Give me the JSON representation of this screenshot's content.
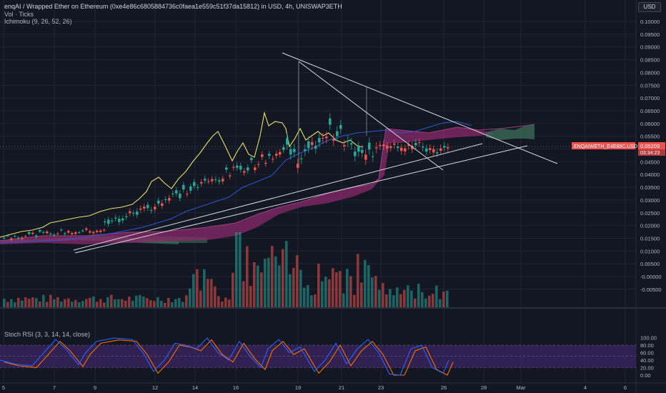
{
  "header": {
    "title": "enqAI / Wrapped Ether on Ethereum (0xe4e86c6805884736c0faea1e559c51f37da15812) in USD, 4h, UNISWAP3ETH",
    "vol_label": "Vol · Ticks",
    "ichimoku_label": "Ichimoku (9, 26, 52, 26)",
    "currency_button": "USD"
  },
  "colors": {
    "background": "#131722",
    "grid": "#1f2535",
    "bull": "#26a69a",
    "bear": "#ef5350",
    "price_line": "#e7e26a",
    "base_line": "#2f55d4",
    "cloud_bear": "#8a2a6a",
    "cloud_bull": "#3d6e5a",
    "trendline": "#d9dbe0",
    "price_tag": "#ef5350",
    "stoch_k": "#2962ff",
    "stoch_d": "#ff6d00",
    "stoch_band": "#4a2a7a"
  },
  "chart_data": [
    {
      "type": "candlestick",
      "ticker_label": "ENQAIWETH_E4E86C.USD",
      "current_price": "0.05209",
      "countdown": "03:34:23",
      "y_ticks": [
        "0.10000",
        "0.09500",
        "0.09000",
        "0.08500",
        "0.08000",
        "0.07500",
        "0.07000",
        "0.06500",
        "0.06000",
        "0.05500",
        "0.05000",
        "0.04500",
        "0.04000",
        "0.03500",
        "0.03000",
        "0.02500",
        "0.02000",
        "0.01500",
        "0.01000",
        "0.00500",
        "-0.00000",
        "-0.00500"
      ],
      "x_ticks": [
        "5",
        "7",
        "9",
        "12",
        "14",
        "16",
        "19",
        "21",
        "23",
        "26",
        "28",
        "Mar",
        "4",
        "6"
      ],
      "x_range": [
        "Feb 4",
        "Mar 6"
      ],
      "ohlc_sample": [
        {
          "day": "5",
          "close": 0.016
        },
        {
          "day": "7",
          "close": 0.014
        },
        {
          "day": "9",
          "close": 0.019
        },
        {
          "day": "12",
          "close": 0.024
        },
        {
          "day": "14",
          "close": 0.028
        },
        {
          "day": "16",
          "close": 0.033
        },
        {
          "day": "18",
          "close": 0.045
        },
        {
          "day": "19",
          "close": 0.05
        },
        {
          "day": "20",
          "close": 0.052
        },
        {
          "day": "21",
          "close": 0.062
        },
        {
          "day": "22",
          "close": 0.058
        },
        {
          "day": "23",
          "close": 0.052
        },
        {
          "day": "24",
          "close": 0.055
        },
        {
          "day": "25",
          "close": 0.05
        },
        {
          "day": "26",
          "close": 0.052
        }
      ],
      "volume_panel": "Vol · Ticks",
      "overlay": "Ichimoku (9, 26, 52, 26)"
    },
    {
      "type": "line",
      "title": "Stoch RSI (3, 3, 14, 14, close)",
      "y_ticks": [
        "100.00",
        "80.00",
        "60.00",
        "40.00",
        "20.00",
        "0.00"
      ],
      "ylim": [
        0,
        100
      ],
      "band": [
        20,
        80
      ]
    }
  ]
}
